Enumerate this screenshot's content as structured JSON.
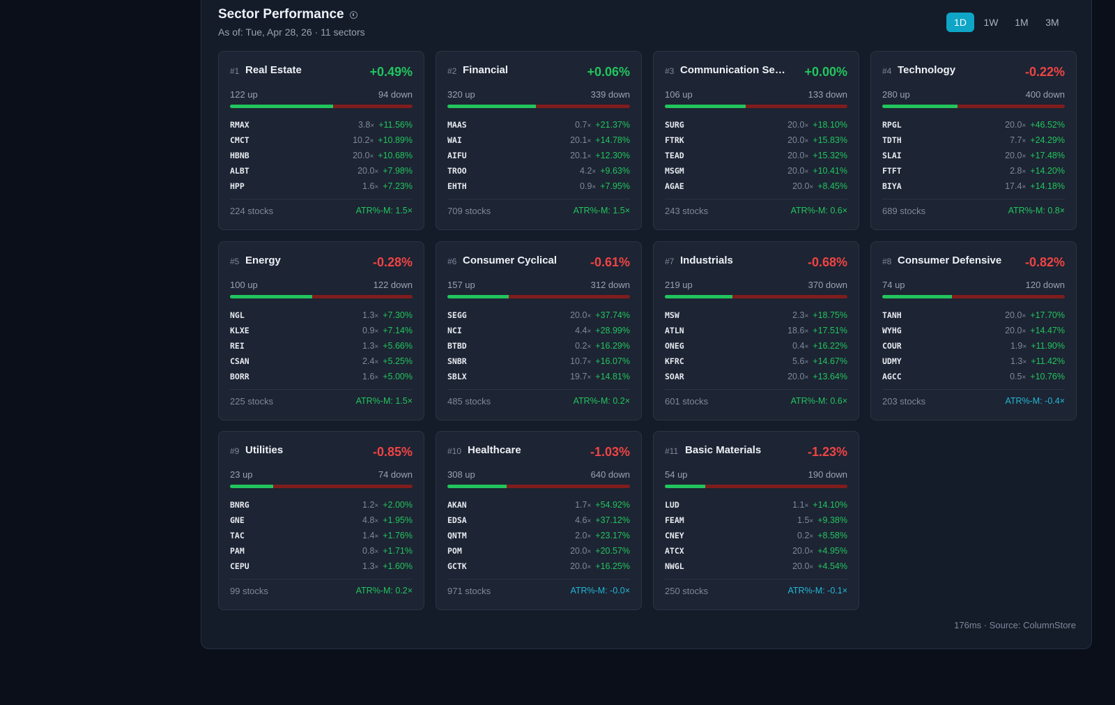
{
  "header": {
    "title": "Sector Performance",
    "subtitle": "As of: Tue, Apr 28, 26 · 11 sectors",
    "ranges": [
      "1D",
      "1W",
      "1M",
      "3M"
    ],
    "active_range": "1D"
  },
  "sectors": [
    {
      "rank": "#1",
      "name": "Real Estate",
      "change": "+0.49%",
      "up": "122 up",
      "down": "94 down",
      "up_ratio": 0.565,
      "tickers": [
        [
          "RMAX",
          "3.8",
          "+11.56%"
        ],
        [
          "CMCT",
          "10.2",
          "+10.89%"
        ],
        [
          "HBNB",
          "20.0",
          "+10.68%"
        ],
        [
          "ALBT",
          "20.0",
          "+7.98%"
        ],
        [
          "HPP",
          "1.6",
          "+7.23%"
        ]
      ],
      "stocks": "224 stocks",
      "atr": "ATR%-M: 1.5×"
    },
    {
      "rank": "#2",
      "name": "Financial",
      "change": "+0.06%",
      "up": "320 up",
      "down": "339 down",
      "up_ratio": 0.486,
      "tickers": [
        [
          "MAAS",
          "0.7",
          "+21.37%"
        ],
        [
          "WAI",
          "20.1",
          "+14.78%"
        ],
        [
          "AIFU",
          "20.1",
          "+12.30%"
        ],
        [
          "TROO",
          "4.2",
          "+9.63%"
        ],
        [
          "EHTH",
          "0.9",
          "+7.95%"
        ]
      ],
      "stocks": "709 stocks",
      "atr": "ATR%-M: 1.5×"
    },
    {
      "rank": "#3",
      "name": "Communication Services",
      "change": "+0.00%",
      "up": "106 up",
      "down": "133 down",
      "up_ratio": 0.444,
      "tickers": [
        [
          "SURG",
          "20.0",
          "+18.10%"
        ],
        [
          "FTRK",
          "20.0",
          "+15.83%"
        ],
        [
          "TEAD",
          "20.0",
          "+15.32%"
        ],
        [
          "MSGM",
          "20.0",
          "+10.41%"
        ],
        [
          "AGAE",
          "20.0",
          "+8.45%"
        ]
      ],
      "stocks": "243 stocks",
      "atr": "ATR%-M: 0.6×"
    },
    {
      "rank": "#4",
      "name": "Technology",
      "change": "-0.22%",
      "up": "280 up",
      "down": "400 down",
      "up_ratio": 0.412,
      "tickers": [
        [
          "RPGL",
          "20.0",
          "+46.52%"
        ],
        [
          "TDTH",
          "7.7",
          "+24.29%"
        ],
        [
          "SLAI",
          "20.0",
          "+17.48%"
        ],
        [
          "FTFT",
          "2.8",
          "+14.20%"
        ],
        [
          "BIYA",
          "17.4",
          "+14.18%"
        ]
      ],
      "stocks": "689 stocks",
      "atr": "ATR%-M: 0.8×"
    },
    {
      "rank": "#5",
      "name": "Energy",
      "change": "-0.28%",
      "up": "100 up",
      "down": "122 down",
      "up_ratio": 0.45,
      "tickers": [
        [
          "NGL",
          "1.3",
          "+7.30%"
        ],
        [
          "KLXE",
          "0.9",
          "+7.14%"
        ],
        [
          "REI",
          "1.3",
          "+5.66%"
        ],
        [
          "CSAN",
          "2.4",
          "+5.25%"
        ],
        [
          "BORR",
          "1.6",
          "+5.00%"
        ]
      ],
      "stocks": "225 stocks",
      "atr": "ATR%-M: 1.5×"
    },
    {
      "rank": "#6",
      "name": "Consumer Cyclical",
      "change": "-0.61%",
      "up": "157 up",
      "down": "312 down",
      "up_ratio": 0.335,
      "tickers": [
        [
          "SEGG",
          "20.0",
          "+37.74%"
        ],
        [
          "NCI",
          "4.4",
          "+28.99%"
        ],
        [
          "BTBD",
          "0.2",
          "+16.29%"
        ],
        [
          "SNBR",
          "10.7",
          "+16.07%"
        ],
        [
          "SBLX",
          "19.7",
          "+14.81%"
        ]
      ],
      "stocks": "485 stocks",
      "atr": "ATR%-M: 0.2×"
    },
    {
      "rank": "#7",
      "name": "Industrials",
      "change": "-0.68%",
      "up": "219 up",
      "down": "370 down",
      "up_ratio": 0.372,
      "tickers": [
        [
          "MSW",
          "2.3",
          "+18.75%"
        ],
        [
          "ATLN",
          "18.6",
          "+17.51%"
        ],
        [
          "ONEG",
          "0.4",
          "+16.22%"
        ],
        [
          "KFRC",
          "5.6",
          "+14.67%"
        ],
        [
          "SOAR",
          "20.0",
          "+13.64%"
        ]
      ],
      "stocks": "601 stocks",
      "atr": "ATR%-M: 0.6×"
    },
    {
      "rank": "#8",
      "name": "Consumer Defensive",
      "change": "-0.82%",
      "up": "74 up",
      "down": "120 down",
      "up_ratio": 0.381,
      "tickers": [
        [
          "TANH",
          "20.0",
          "+17.70%"
        ],
        [
          "WYHG",
          "20.0",
          "+14.47%"
        ],
        [
          "COUR",
          "1.9",
          "+11.90%"
        ],
        [
          "UDMY",
          "1.3",
          "+11.42%"
        ],
        [
          "AGCC",
          "0.5",
          "+10.76%"
        ]
      ],
      "stocks": "203 stocks",
      "atr": "ATR%-M: -0.4×"
    },
    {
      "rank": "#9",
      "name": "Utilities",
      "change": "-0.85%",
      "up": "23 up",
      "down": "74 down",
      "up_ratio": 0.237,
      "tickers": [
        [
          "BNRG",
          "1.2",
          "+2.00%"
        ],
        [
          "GNE",
          "4.8",
          "+1.95%"
        ],
        [
          "TAC",
          "1.4",
          "+1.76%"
        ],
        [
          "PAM",
          "0.8",
          "+1.71%"
        ],
        [
          "CEPU",
          "1.3",
          "+1.60%"
        ]
      ],
      "stocks": "99 stocks",
      "atr": "ATR%-M: 0.2×"
    },
    {
      "rank": "#10",
      "name": "Healthcare",
      "change": "-1.03%",
      "up": "308 up",
      "down": "640 down",
      "up_ratio": 0.325,
      "tickers": [
        [
          "AKAN",
          "1.7",
          "+54.92%"
        ],
        [
          "EDSA",
          "4.6",
          "+37.12%"
        ],
        [
          "QNTM",
          "2.0",
          "+23.17%"
        ],
        [
          "POM",
          "20.0",
          "+20.57%"
        ],
        [
          "GCTK",
          "20.0",
          "+16.25%"
        ]
      ],
      "stocks": "971 stocks",
      "atr": "ATR%-M: -0.0×"
    },
    {
      "rank": "#11",
      "name": "Basic Materials",
      "change": "-1.23%",
      "up": "54 up",
      "down": "190 down",
      "up_ratio": 0.221,
      "tickers": [
        [
          "LUD",
          "1.1",
          "+14.10%"
        ],
        [
          "FEAM",
          "1.5",
          "+9.38%"
        ],
        [
          "CNEY",
          "0.2",
          "+8.58%"
        ],
        [
          "ATCX",
          "20.0",
          "+4.95%"
        ],
        [
          "NWGL",
          "20.0",
          "+4.54%"
        ]
      ],
      "stocks": "250 stocks",
      "atr": "ATR%-M: -0.1×"
    }
  ],
  "footer": "176ms · Source: ColumnStore",
  "colors": {
    "up": "#22c55e",
    "down": "#ef4444",
    "accent": "#0ea5c6",
    "atr_negative": "#22b8d6"
  }
}
